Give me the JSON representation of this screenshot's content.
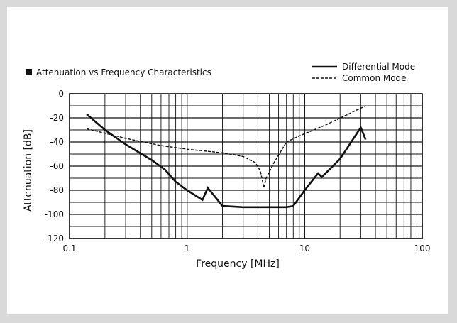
{
  "chart_data": {
    "type": "line",
    "title": "Attenuation vs Frequency Characteristics",
    "xlabel": "Frequency [MHz]",
    "ylabel": "Attenuation [dB]",
    "x_scale": "log",
    "xlim": [
      0.1,
      100
    ],
    "ylim": [
      -120,
      0
    ],
    "x_ticks": [
      0.1,
      1,
      10,
      100
    ],
    "x_tick_labels": [
      "0.1",
      "1",
      "10",
      "100"
    ],
    "y_ticks": [
      0,
      -20,
      -40,
      -60,
      -80,
      -100,
      -120
    ],
    "y_tick_labels": [
      "0",
      "-20",
      "-40",
      "-60",
      "-80",
      "-100",
      "-120"
    ],
    "grid": true,
    "legend_position": "top-right",
    "series": [
      {
        "name": "Differential Mode",
        "style": "solid",
        "color": "#111111",
        "points": [
          [
            0.14,
            -17
          ],
          [
            0.2,
            -30
          ],
          [
            0.3,
            -42
          ],
          [
            0.5,
            -55
          ],
          [
            0.65,
            -63
          ],
          [
            0.8,
            -73
          ],
          [
            1.0,
            -80
          ],
          [
            1.35,
            -88
          ],
          [
            1.5,
            -78
          ],
          [
            2.0,
            -93
          ],
          [
            3.0,
            -94
          ],
          [
            5.0,
            -94
          ],
          [
            7.0,
            -94
          ],
          [
            8.0,
            -93
          ],
          [
            10.0,
            -80
          ],
          [
            13.0,
            -66
          ],
          [
            14.0,
            -69
          ],
          [
            20.0,
            -54
          ],
          [
            30.0,
            -28
          ],
          [
            33.0,
            -38
          ]
        ]
      },
      {
        "name": "Common Mode",
        "style": "dashed",
        "color": "#111111",
        "points": [
          [
            0.14,
            -29
          ],
          [
            0.3,
            -37
          ],
          [
            0.6,
            -43
          ],
          [
            1.0,
            -46
          ],
          [
            2.0,
            -49
          ],
          [
            3.0,
            -52
          ],
          [
            3.8,
            -57
          ],
          [
            4.2,
            -64
          ],
          [
            4.5,
            -78
          ],
          [
            4.7,
            -70
          ],
          [
            5.5,
            -57
          ],
          [
            7.0,
            -40
          ],
          [
            9.0,
            -35
          ],
          [
            15.0,
            -26
          ],
          [
            30.0,
            -12
          ],
          [
            33.0,
            -10
          ]
        ]
      }
    ]
  }
}
